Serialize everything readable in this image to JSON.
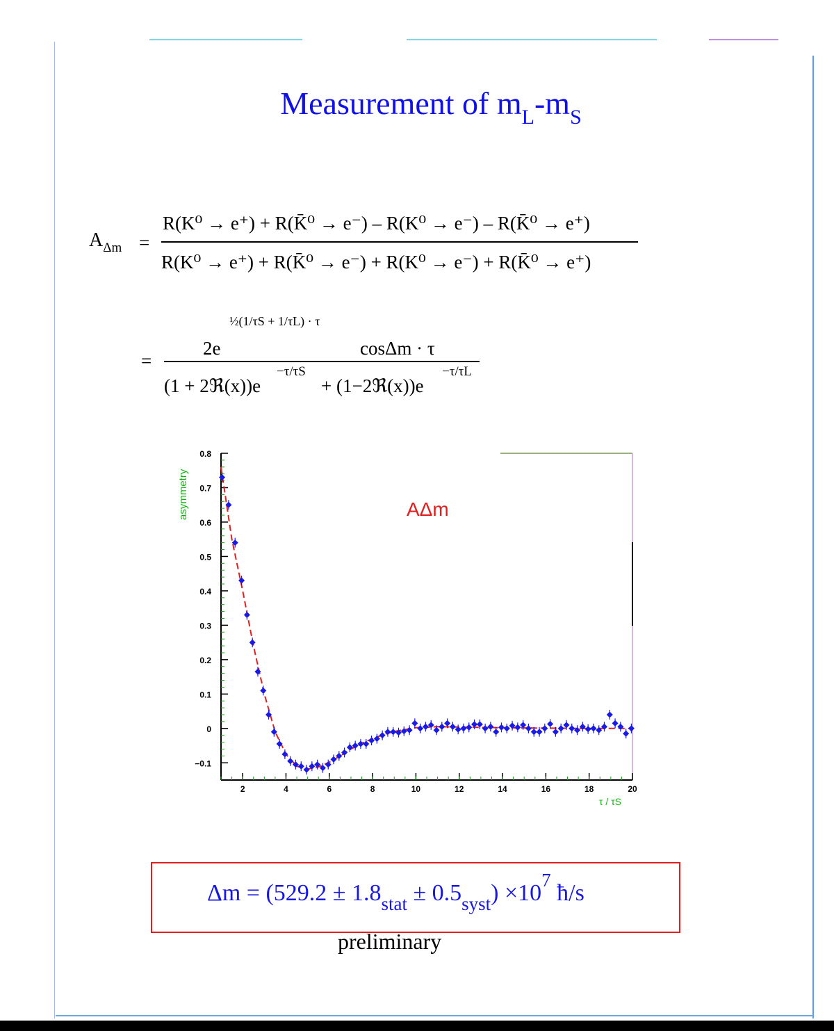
{
  "colors": {
    "title": "#1010e8",
    "points": "#1a1ae6",
    "fit": "#e02020",
    "axis_label": "#18b018",
    "box": "#e02020"
  },
  "title": {
    "main": "Measurement of m",
    "sub1": "L",
    "dash": "-m",
    "sub2": "S"
  },
  "formula": {
    "lhs": "A",
    "lhs_sub": "Δm",
    "eq": "=",
    "numerator": "R(K⁰ → e⁺) + R(K̄⁰ → e⁻) – R(K⁰ → e⁻) – R(K̄⁰ → e⁺)",
    "denominator": "R(K⁰ → e⁺) + R(K̄⁰ → e⁻) + R(K⁰ → e⁻) + R(K̄⁰ → e⁺)",
    "eq2": "=",
    "exp_half": "½(1/τS + 1/τL) · τ",
    "num2_a": "2e",
    "num2_b": "cosΔm · τ",
    "den2_a": "(1 + 2ℜ(x))e",
    "den2_exp_a": "−τ/τS",
    "den2_b": "+ (1−2ℜ(x))e",
    "den2_exp_b": "−τ/τL"
  },
  "chart_data": {
    "type": "scatter",
    "label": "AΔm",
    "xlabel": "τ / τS",
    "ylabel": "asymmetry",
    "xlim": [
      1,
      20
    ],
    "ylim": [
      -0.15,
      0.8
    ],
    "x_ticks": [
      2,
      4,
      6,
      8,
      10,
      12,
      14,
      16,
      18,
      20
    ],
    "y_ticks": [
      -0.1,
      0,
      0.1,
      0.2,
      0.3,
      0.4,
      0.5,
      0.6,
      0.7,
      0.8
    ],
    "y_tick_labels": [
      "−0.1",
      "0",
      "0.1",
      "0.2",
      "0.3",
      "0.4",
      "0.5",
      "0.6",
      "0.7",
      "0.8"
    ],
    "series": [
      {
        "kind": "points",
        "x": [
          1.05,
          1.35,
          1.65,
          1.95,
          2.2,
          2.45,
          2.7,
          2.95,
          3.2,
          3.45,
          3.7,
          3.95,
          4.2,
          4.45,
          4.7,
          4.95,
          5.2,
          5.45,
          5.7,
          5.95,
          6.2,
          6.45,
          6.7,
          6.95,
          7.2,
          7.45,
          7.7,
          7.95,
          8.2,
          8.45,
          8.7,
          8.95,
          9.2,
          9.45,
          9.7,
          9.95,
          10.2,
          10.45,
          10.7,
          10.95,
          11.2,
          11.45,
          11.7,
          11.95,
          12.2,
          12.45,
          12.7,
          12.95,
          13.2,
          13.45,
          13.7,
          13.95,
          14.2,
          14.45,
          14.7,
          14.95,
          15.2,
          15.45,
          15.7,
          15.95,
          16.2,
          16.45,
          16.7,
          16.95,
          17.2,
          17.45,
          17.7,
          17.95,
          18.2,
          18.45,
          18.7,
          18.95,
          19.2,
          19.45,
          19.7,
          19.95
        ],
        "y": [
          0.73,
          0.65,
          0.54,
          0.43,
          0.33,
          0.25,
          0.165,
          0.11,
          0.04,
          -0.01,
          -0.045,
          -0.075,
          -0.095,
          -0.105,
          -0.11,
          -0.12,
          -0.11,
          -0.105,
          -0.115,
          -0.105,
          -0.09,
          -0.08,
          -0.07,
          -0.055,
          -0.05,
          -0.045,
          -0.045,
          -0.035,
          -0.03,
          -0.02,
          -0.01,
          -0.01,
          -0.012,
          -0.008,
          -0.005,
          0.015,
          0.0,
          0.005,
          0.01,
          -0.005,
          0.005,
          0.015,
          0.005,
          -0.003,
          0.0,
          0.003,
          0.012,
          0.012,
          0.0,
          0.005,
          -0.01,
          0.003,
          0.0,
          0.008,
          0.003,
          0.01,
          0.0,
          -0.01,
          -0.01,
          0.0,
          0.013,
          -0.01,
          0.0,
          0.01,
          0.0,
          -0.005,
          0.005,
          -0.002,
          0.0,
          -0.005,
          0.005,
          0.04,
          0.015,
          0.005,
          -0.015,
          0.0
        ]
      },
      {
        "kind": "fit",
        "x": [
          1.0,
          1.5,
          2.0,
          2.5,
          3.0,
          3.5,
          4.0,
          4.5,
          5.0,
          5.5,
          6.0,
          6.5,
          7.0,
          7.5,
          8.0,
          8.5,
          9.0,
          9.5,
          10.0,
          11.0,
          12.0,
          13.0,
          14.0,
          16.0,
          18.0,
          20.0
        ],
        "y": [
          0.76,
          0.55,
          0.4,
          0.24,
          0.1,
          -0.01,
          -0.075,
          -0.11,
          -0.118,
          -0.112,
          -0.098,
          -0.08,
          -0.06,
          -0.043,
          -0.03,
          -0.018,
          -0.009,
          -0.003,
          0.002,
          0.005,
          0.004,
          0.003,
          0.002,
          0.001,
          0.0,
          0.0
        ]
      }
    ]
  },
  "result": {
    "lhs": "Δm = (529.2 ± 1.8",
    "stat": "stat",
    "mid": " ± 0.5",
    "syst": "syst",
    "close": ") ×10",
    "exp": "7",
    "unit": " ħ/s"
  },
  "preliminary": "preliminary"
}
